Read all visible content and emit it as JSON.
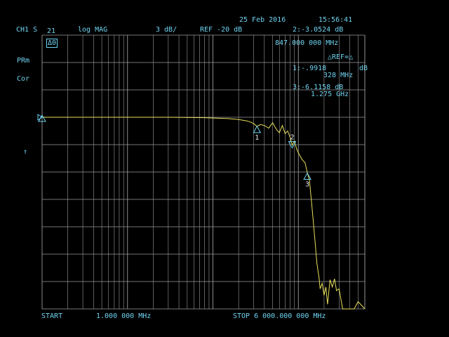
{
  "header": {
    "date": "25 Feb 2016",
    "time": "15:56:41",
    "channel": "CH1 S",
    "param": "21",
    "format": "log MAG",
    "scale": "3 dB/",
    "ref": "REF -20 dB",
    "active_marker_readout": "2:-3.0524 dB",
    "active_marker_freq": "847.000 000 MHz",
    "delta_mode": "△REF=△",
    "unit_db": "dB"
  },
  "left_annotations": {
    "mode_box": "Δ0",
    "prm": "PRm",
    "cor": "Cor",
    "arrow": "↑"
  },
  "marker_table": [
    {
      "line1": "1:-.9918",
      "line2": "328 MHz"
    },
    {
      "line1": "3:-6.1158 dB",
      "line2": "1.275 GHz"
    }
  ],
  "footer": {
    "start": "START",
    "start_freq": "1.000 000 MHz",
    "stop": "STOP 6 000.000 000 MHz"
  },
  "colors": {
    "trace": "#e8e05a",
    "text": "#6fd3f0",
    "grid": "#9a9a9a",
    "background": "#000000"
  },
  "chart_data": {
    "type": "line",
    "x_scale": "log",
    "xlim_mhz": [
      1,
      6000
    ],
    "y_unit": "dB",
    "y_per_div": 3,
    "ref_db": -20,
    "series": [
      {
        "x_mhz": [
          1,
          2,
          5,
          10,
          30,
          80,
          150,
          200,
          250,
          280,
          300,
          328,
          360,
          400,
          450,
          500,
          560,
          600,
          650,
          700,
          750,
          800,
          847,
          900,
          950,
          1000,
          1100,
          1200,
          1275,
          1350,
          1450,
          1550,
          1650,
          1750,
          1800,
          1900,
          2000,
          2100,
          2200,
          2350,
          2500,
          2650,
          2800,
          3000,
          3300,
          3600,
          4000,
          4500,
          5000,
          6000
        ],
        "y_db": [
          0.0,
          0.0,
          0.0,
          0.0,
          0.0,
          -0.05,
          -0.15,
          -0.25,
          -0.4,
          -0.55,
          -0.7,
          -1.0,
          -0.8,
          -0.9,
          -1.2,
          -0.6,
          -1.4,
          -1.7,
          -0.9,
          -1.8,
          -1.5,
          -2.2,
          -3.05,
          -2.6,
          -3.4,
          -3.9,
          -4.6,
          -5.0,
          -6.1,
          -6.9,
          -10.0,
          -13.0,
          -16.0,
          -17.6,
          -18.8,
          -18.2,
          -19.5,
          -18.6,
          -20.5,
          -17.8,
          -18.6,
          -17.7,
          -19.0,
          -18.8,
          -21.0,
          -21.0,
          -21.0,
          -21.0,
          -20.2,
          -21.0
        ]
      }
    ],
    "markers": [
      {
        "id": "1",
        "x_mhz": 328,
        "y_db": -0.9918,
        "dir": "up"
      },
      {
        "id": "2",
        "x_mhz": 847,
        "y_db": -3.0524,
        "dir": "down"
      },
      {
        "id": "3",
        "x_mhz": 1275,
        "y_db": -6.1158,
        "dir": "up"
      }
    ],
    "ref_marker_y_db": 0
  }
}
